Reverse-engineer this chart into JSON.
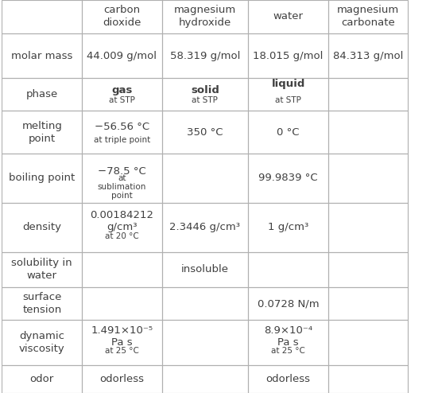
{
  "col_headers": [
    "",
    "carbon\ndioxide",
    "magnesium\nhydroxide",
    "water",
    "magnesium\ncarbonate"
  ],
  "rows": [
    {
      "label": "molar mass",
      "cells": [
        {
          "main": "44.009 g/mol",
          "sub": ""
        },
        {
          "main": "58.319 g/mol",
          "sub": ""
        },
        {
          "main": "18.015 g/mol",
          "sub": ""
        },
        {
          "main": "84.313 g/mol",
          "sub": ""
        }
      ]
    },
    {
      "label": "phase",
      "cells": [
        {
          "main": "gas",
          "sub": "at STP",
          "bold_main": true
        },
        {
          "main": "solid",
          "sub": "at STP",
          "bold_main": true
        },
        {
          "main": "liquid\n",
          "sub": "at STP",
          "bold_main": true,
          "sub_below": true
        },
        {
          "main": "",
          "sub": ""
        }
      ]
    },
    {
      "label": "melting\npoint",
      "cells": [
        {
          "main": "−56.56 °C",
          "sub": "at triple point"
        },
        {
          "main": "350 °C",
          "sub": ""
        },
        {
          "main": "0 °C",
          "sub": ""
        },
        {
          "main": "",
          "sub": ""
        }
      ]
    },
    {
      "label": "boiling point",
      "cells": [
        {
          "main": "−78.5 °C",
          "sub": "at\nsublimation\npoint"
        },
        {
          "main": "",
          "sub": ""
        },
        {
          "main": "99.9839 °C",
          "sub": ""
        },
        {
          "main": "",
          "sub": ""
        }
      ]
    },
    {
      "label": "density",
      "cells": [
        {
          "main": "0.00184212\ng/cm³",
          "sub": "at 20 °C"
        },
        {
          "main": "2.3446 g/cm³",
          "sub": ""
        },
        {
          "main": "1 g/cm³",
          "sub": ""
        },
        {
          "main": "",
          "sub": ""
        }
      ]
    },
    {
      "label": "solubility in\nwater",
      "cells": [
        {
          "main": "",
          "sub": ""
        },
        {
          "main": "insoluble",
          "sub": ""
        },
        {
          "main": "",
          "sub": ""
        },
        {
          "main": "",
          "sub": ""
        }
      ]
    },
    {
      "label": "surface\ntension",
      "cells": [
        {
          "main": "",
          "sub": ""
        },
        {
          "main": "",
          "sub": ""
        },
        {
          "main": "0.0728 N/m",
          "sub": ""
        },
        {
          "main": "",
          "sub": ""
        }
      ]
    },
    {
      "label": "dynamic\nviscosity",
      "cells": [
        {
          "main": "1.491×10⁻⁵\nPa s",
          "sub": "at 25 °C"
        },
        {
          "main": "",
          "sub": ""
        },
        {
          "main": "8.9×10⁻⁴\nPa s",
          "sub": "at 25 °C"
        },
        {
          "main": "",
          "sub": ""
        }
      ]
    },
    {
      "label": "odor",
      "cells": [
        {
          "main": "odorless",
          "sub": ""
        },
        {
          "main": "",
          "sub": ""
        },
        {
          "main": "odorless",
          "sub": ""
        },
        {
          "main": "",
          "sub": ""
        }
      ]
    }
  ],
  "bg_color": "#ffffff",
  "line_color": "#b0b0b0",
  "text_color": "#404040",
  "header_fontsize": 9.5,
  "label_fontsize": 9.5,
  "cell_fontsize": 9.5,
  "sub_fontsize": 7.5
}
